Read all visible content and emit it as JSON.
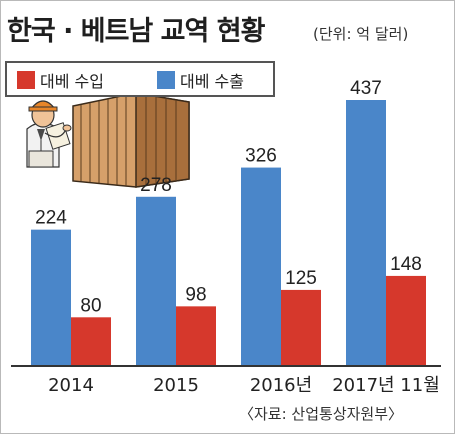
{
  "title": "한국 · 베트남 교역 현황",
  "unit": "(단위: 억 달러)",
  "source": "〈자료: 산업통상자원부〉",
  "colors": {
    "import": "#d6382c",
    "export": "#4a86c9",
    "axis": "#333333"
  },
  "chart_data": {
    "type": "bar",
    "title": "한국 · 베트남 교역 현황",
    "unit": "억 달러",
    "categories": [
      "2014",
      "2015",
      "2016년",
      "2017년 11월"
    ],
    "series": [
      {
        "name": "대베 수출",
        "values": [
          224,
          278,
          326,
          437
        ]
      },
      {
        "name": "대베 수입",
        "values": [
          80,
          98,
          125,
          148
        ]
      }
    ],
    "legend": [
      "대베 수입",
      "대베 수출"
    ],
    "ylim": [
      0,
      437
    ],
    "grid": false,
    "legend_position": "top-left"
  }
}
